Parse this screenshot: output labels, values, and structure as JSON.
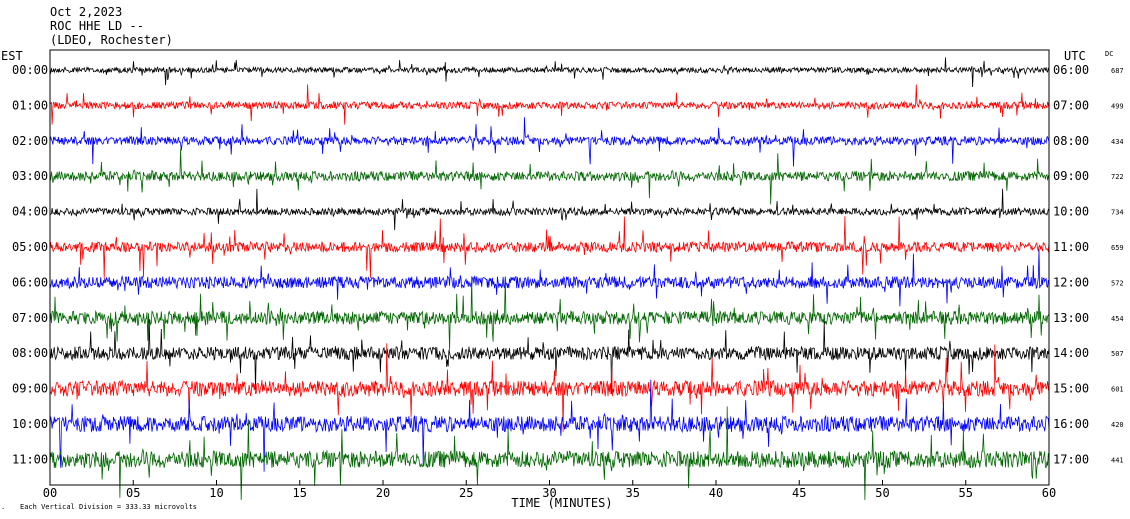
{
  "header": {
    "date": "Oct 2,2023",
    "station": "ROC HHE LD --",
    "location": "(LDEO, Rochester)"
  },
  "footer": {
    "scale_note": "Each Vertical Division = 333.33 microvolts"
  },
  "colors": {
    "black": "#000000",
    "red": "#ff0000",
    "blue": "#0000ff",
    "green": "#006600"
  },
  "chart_data": {
    "type": "line",
    "description_kind": "helicorder seismogram",
    "left_axis_label": "EST",
    "right_axis_label": "UTC",
    "dc_label": "DC",
    "xlabel": "TIME (MINUTES)",
    "x_ticks": [
      "00",
      "05",
      "10",
      "15",
      "20",
      "25",
      "30",
      "35",
      "40",
      "45",
      "50",
      "55",
      "60"
    ],
    "xlim": [
      0,
      60
    ],
    "rows": [
      {
        "est": "00:00",
        "utc": "06:00",
        "dc": "687",
        "color": "#000000",
        "amplitude": 0.45
      },
      {
        "est": "01:00",
        "utc": "07:00",
        "dc": "499",
        "color": "#ff0000",
        "amplitude": 0.6
      },
      {
        "est": "02:00",
        "utc": "08:00",
        "dc": "434",
        "color": "#0000ff",
        "amplitude": 0.7
      },
      {
        "est": "03:00",
        "utc": "09:00",
        "dc": "722",
        "color": "#006600",
        "amplitude": 0.8
      },
      {
        "est": "04:00",
        "utc": "10:00",
        "dc": "734",
        "color": "#000000",
        "amplitude": 0.6
      },
      {
        "est": "05:00",
        "utc": "11:00",
        "dc": "659",
        "color": "#ff0000",
        "amplitude": 0.85
      },
      {
        "est": "06:00",
        "utc": "12:00",
        "dc": "572",
        "color": "#0000ff",
        "amplitude": 1.0
      },
      {
        "est": "07:00",
        "utc": "13:00",
        "dc": "454",
        "color": "#006600",
        "amplitude": 1.1
      },
      {
        "est": "08:00",
        "utc": "14:00",
        "dc": "507",
        "color": "#000000",
        "amplitude": 1.1
      },
      {
        "est": "09:00",
        "utc": "15:00",
        "dc": "601",
        "color": "#ff0000",
        "amplitude": 1.3
      },
      {
        "est": "10:00",
        "utc": "16:00",
        "dc": "420",
        "color": "#0000ff",
        "amplitude": 1.3
      },
      {
        "est": "11:00",
        "utc": "17:00",
        "dc": "441",
        "color": "#006600",
        "amplitude": 1.4
      }
    ]
  }
}
